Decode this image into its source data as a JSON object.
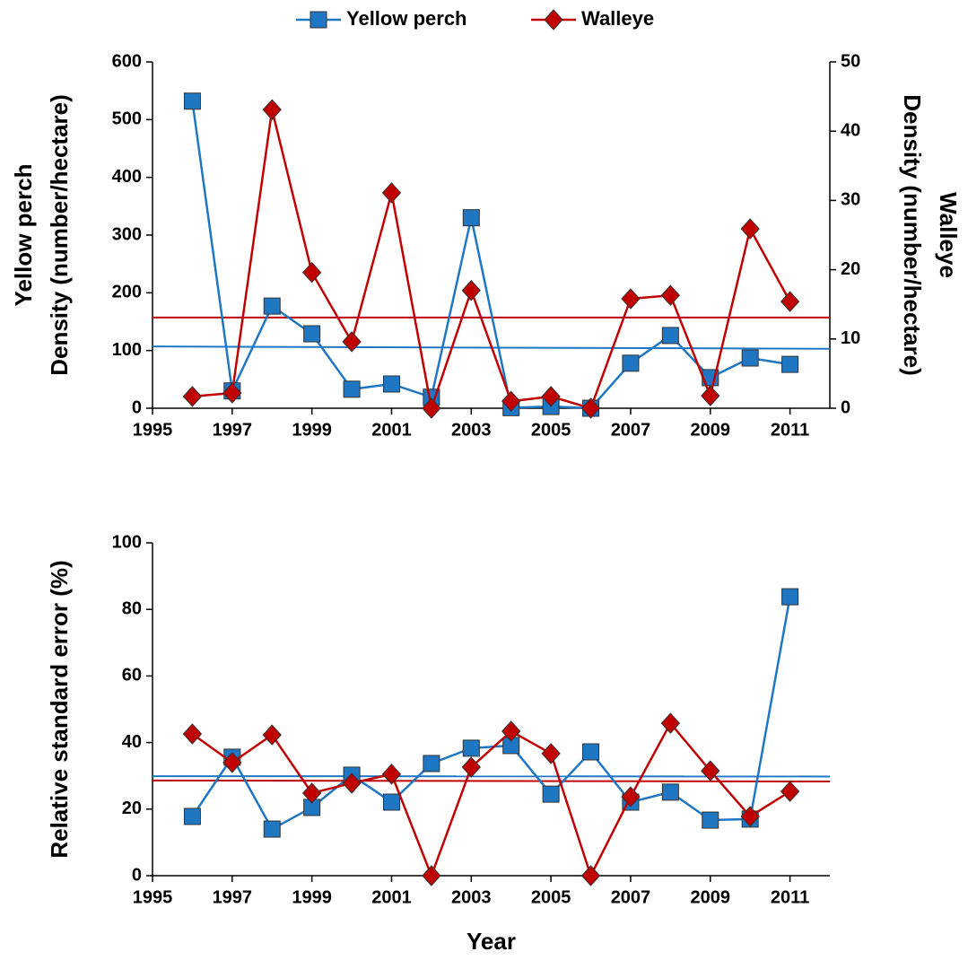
{
  "chart_data": [
    {
      "type": "line",
      "legend": "top",
      "y_label": [
        "Yellow perch",
        "Density (number/hectare)"
      ],
      "y2_label": [
        "Walleye",
        "Density (number/hectare)"
      ],
      "x": [
        1996,
        1997,
        1998,
        1999,
        2000,
        2001,
        2002,
        2003,
        2004,
        2005,
        2006,
        2007,
        2008,
        2009,
        2010,
        2011
      ],
      "xlim": [
        1995,
        2012
      ],
      "xticks": [
        1995,
        1997,
        1999,
        2001,
        2003,
        2005,
        2007,
        2009,
        2011
      ],
      "ylim": [
        0,
        600
      ],
      "yticks": [
        0,
        100,
        200,
        300,
        400,
        500,
        600
      ],
      "y2lim": [
        0,
        50
      ],
      "y2ticks": [
        0,
        10,
        20,
        30,
        40,
        50
      ],
      "series": [
        {
          "name": "Yellow perch",
          "color": "#1f77c4",
          "marker": "square",
          "axis": "y",
          "values": [
            532,
            30,
            177,
            129,
            33,
            42,
            19,
            330,
            1,
            3,
            0,
            78,
            126,
            53,
            87,
            76
          ]
        },
        {
          "name": "Walleye",
          "color": "#c00000",
          "marker": "diamond",
          "axis": "y2",
          "values": [
            1.7,
            2.2,
            43.1,
            19.6,
            9.6,
            31.1,
            0,
            17.0,
            1.0,
            1.7,
            0,
            15.8,
            16.3,
            1.8,
            25.9,
            15.4
          ]
        }
      ],
      "trend_lines": [
        {
          "color": "#1f77c4",
          "axis": "y",
          "x": [
            1995,
            2012
          ],
          "values": [
            107,
            103
          ]
        },
        {
          "color": "#c00000",
          "axis": "y2",
          "x": [
            1995,
            2012
          ],
          "values": [
            13.1,
            13.1
          ]
        }
      ]
    },
    {
      "type": "line",
      "y_label": [
        "Relative standard error (%)"
      ],
      "x_label": "Year",
      "x": [
        1996,
        1997,
        1998,
        1999,
        2000,
        2001,
        2002,
        2003,
        2004,
        2005,
        2006,
        2007,
        2008,
        2009,
        2010,
        2011
      ],
      "xlim": [
        1995,
        2012
      ],
      "xticks": [
        1995,
        1997,
        1999,
        2001,
        2003,
        2005,
        2007,
        2009,
        2011
      ],
      "ylim": [
        0,
        100
      ],
      "yticks": [
        0,
        20,
        40,
        60,
        80,
        100
      ],
      "series": [
        {
          "name": "Yellow perch",
          "color": "#1f77c4",
          "marker": "square",
          "axis": "y",
          "values": [
            17.8,
            35.6,
            14.0,
            20.5,
            30.2,
            22.1,
            33.7,
            38.3,
            39.1,
            24.5,
            37.2,
            22.1,
            25.1,
            16.7,
            17.0,
            83.8
          ]
        },
        {
          "name": "Walleye",
          "color": "#c00000",
          "marker": "diamond",
          "axis": "y",
          "values": [
            42.6,
            34.0,
            42.3,
            24.8,
            27.8,
            30.5,
            0,
            32.6,
            43.4,
            36.7,
            0,
            23.7,
            45.8,
            31.5,
            17.8,
            25.3
          ]
        }
      ],
      "trend_lines": [
        {
          "color": "#1f77c4",
          "axis": "y",
          "x": [
            1995,
            2012
          ],
          "values": [
            29.9,
            29.8
          ]
        },
        {
          "color": "#c00000",
          "axis": "y",
          "x": [
            1995,
            2012
          ],
          "values": [
            28.6,
            28.3
          ]
        }
      ]
    }
  ]
}
